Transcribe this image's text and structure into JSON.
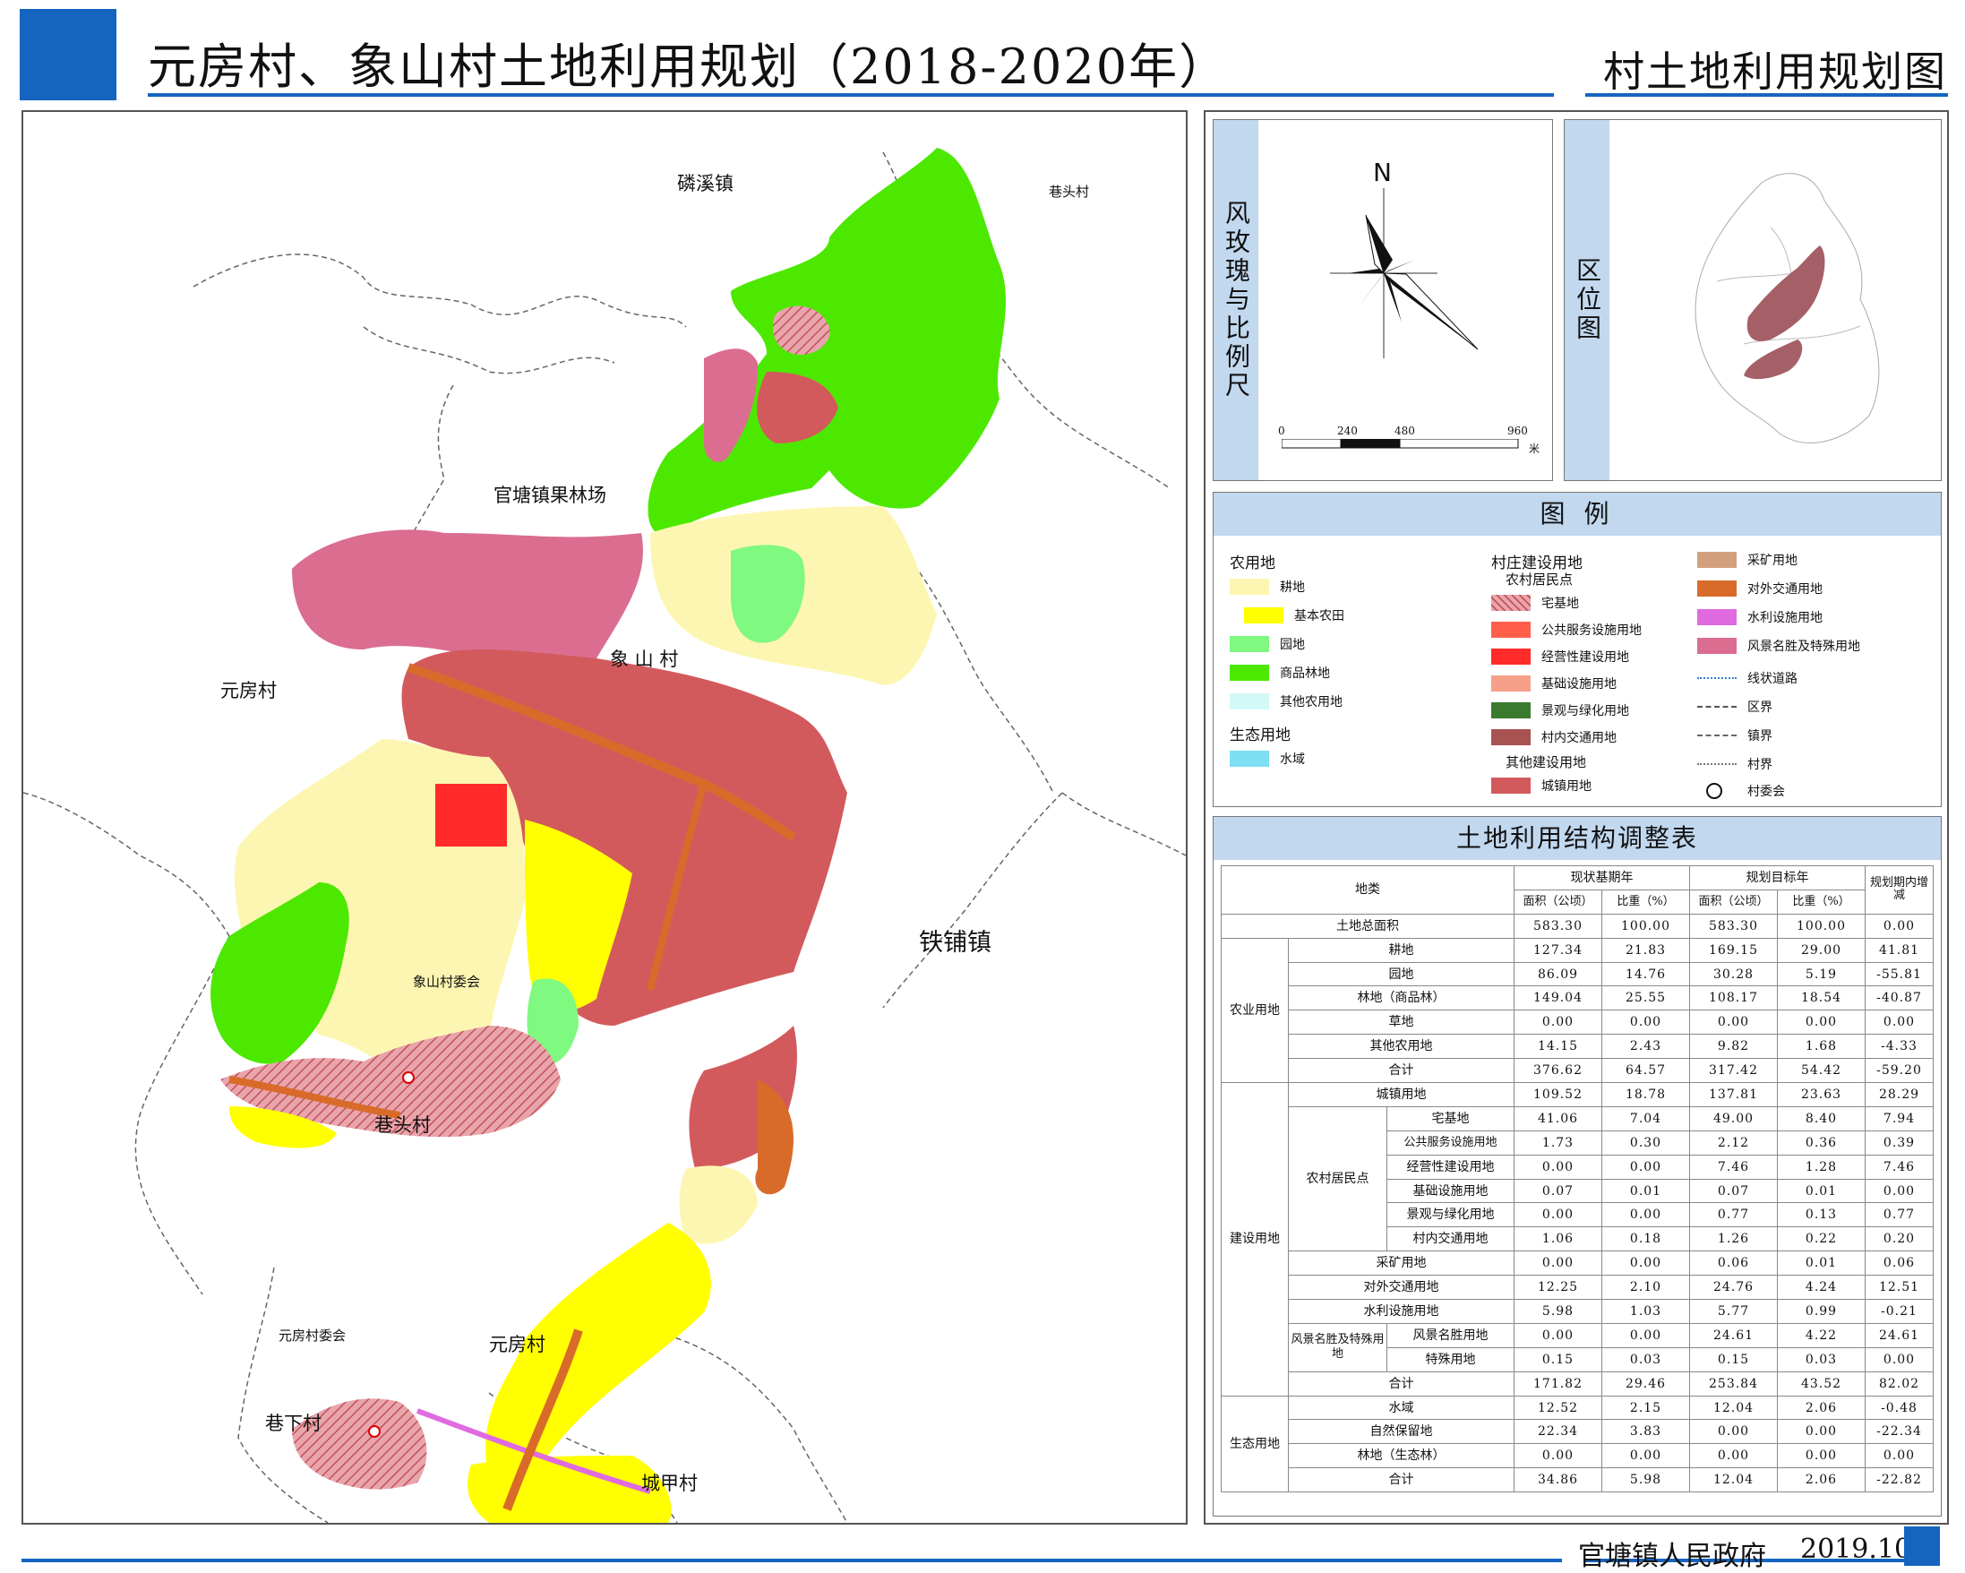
{
  "header": {
    "title": "元房村、象山村土地利用规划（2018-2020年）",
    "map_kind": "村土地利用规划图"
  },
  "footer": {
    "government": "官塘镇人民政府",
    "date": "2019.10"
  },
  "map": {
    "labels": {
      "linxi": "磷溪镇",
      "xiangtou_top": "巷头村",
      "guantang_orchard": "官塘镇果林场",
      "yuanfang_west": "元房村",
      "xiangshan": "象  山  村",
      "tiepu": "铁铺镇",
      "xiangtou_mid": "巷头村",
      "yuanfang_village": "元房村",
      "xiaxia": "巷下村",
      "chengjia": "城甲村",
      "xiangshan_committee": "象山村委会",
      "yuanfang_committee": "元房村委会"
    },
    "colors": {
      "cultivated": "#fdf6b2",
      "basic_farmland": "#ffff00",
      "garden": "#7ff97f",
      "commercial_forest": "#4de800",
      "other_agri": "#d2f8f8",
      "water": "#7fdff5",
      "homestead": "#d9858d",
      "town_land": "#d35a5c",
      "business": "#ff2a2a",
      "transport": "#d96b2a",
      "scenic": "#db6d90",
      "irrigation": "#e06be0"
    }
  },
  "compass": {
    "title": "风玫瑰与比例尺",
    "north": "N",
    "scale_ticks": [
      "0",
      "240",
      "480",
      "960"
    ],
    "scale_unit": "米"
  },
  "locator": {
    "title": "区位图"
  },
  "legend": {
    "title": "图   例",
    "col1": {
      "head_agri": "农用地",
      "items": [
        {
          "label": "耕地",
          "color": "#fdf6b2"
        },
        {
          "label": "基本农田",
          "color": "#ffff00"
        },
        {
          "label": "园地",
          "color": "#7ff97f"
        },
        {
          "label": "商品林地",
          "color": "#4de800"
        },
        {
          "label": "其他农用地",
          "color": "#d2f8f8"
        }
      ],
      "head_eco": "生态用地",
      "eco_items": [
        {
          "label": "水域",
          "color": "#7fdff5"
        }
      ]
    },
    "col2": {
      "head": "村庄建设用地",
      "sub_head": "农村居民点",
      "items": [
        {
          "label": "宅基地",
          "color": "#d9858d"
        },
        {
          "label": "公共服务设施用地",
          "color": "#ff5f4a"
        },
        {
          "label": "经营性建设用地",
          "color": "#ff2a2a"
        },
        {
          "label": "基础设施用地",
          "color": "#f6a08a"
        },
        {
          "label": "景观与绿化用地",
          "color": "#3a7a2e"
        },
        {
          "label": "村内交通用地",
          "color": "#a85252"
        }
      ],
      "sub_head2": "其他建设用地",
      "items2": [
        {
          "label": "城镇用地",
          "color": "#d35a5c"
        }
      ]
    },
    "col3": {
      "items": [
        {
          "label": "采矿用地",
          "color": "#d3a07e"
        },
        {
          "label": "对外交通用地",
          "color": "#d96b2a"
        },
        {
          "label": "水利设施用地",
          "color": "#e06be0"
        },
        {
          "label": "风景名胜及特殊用地",
          "color": "#db6d90"
        }
      ],
      "lines": [
        {
          "label": "线状道路"
        },
        {
          "label": "区界"
        },
        {
          "label": "镇界"
        },
        {
          "label": "村界"
        }
      ],
      "committee": "村委会"
    }
  },
  "table": {
    "title": "土地利用结构调整表",
    "header": {
      "category": "地类",
      "base_year": "现状基期年",
      "target_year": "规划目标年",
      "change": "规划期内增减",
      "area": "面积（公顷）",
      "ratio": "比重（%）"
    },
    "total": {
      "label": "土地总面积",
      "values": [
        "583.30",
        "100.00",
        "583.30",
        "100.00",
        "0.00"
      ]
    },
    "agri": {
      "group": "农业用地",
      "rows": [
        {
          "label": "耕地",
          "values": [
            "127.34",
            "21.83",
            "169.15",
            "29.00",
            "41.81"
          ]
        },
        {
          "label": "园地",
          "values": [
            "86.09",
            "14.76",
            "30.28",
            "5.19",
            "-55.81"
          ]
        },
        {
          "label": "林地（商品林）",
          "values": [
            "149.04",
            "25.55",
            "108.17",
            "18.54",
            "-40.87"
          ]
        },
        {
          "label": "草地",
          "values": [
            "0.00",
            "0.00",
            "0.00",
            "0.00",
            "0.00"
          ]
        },
        {
          "label": "其他农用地",
          "values": [
            "14.15",
            "2.43",
            "9.82",
            "1.68",
            "-4.33"
          ]
        },
        {
          "label": "合计",
          "values": [
            "376.62",
            "64.57",
            "317.42",
            "54.42",
            "-59.20"
          ]
        }
      ]
    },
    "build": {
      "group": "建设用地",
      "town": {
        "label": "城镇用地",
        "values": [
          "109.52",
          "18.78",
          "137.81",
          "23.63",
          "28.29"
        ]
      },
      "rural_group": "农村居民点",
      "rural_rows": [
        {
          "label": "宅基地",
          "values": [
            "41.06",
            "7.04",
            "49.00",
            "8.40",
            "7.94"
          ]
        },
        {
          "label": "公共服务设施用地",
          "values": [
            "1.73",
            "0.30",
            "2.12",
            "0.36",
            "0.39"
          ]
        },
        {
          "label": "经营性建设用地",
          "values": [
            "0.00",
            "0.00",
            "7.46",
            "1.28",
            "7.46"
          ]
        },
        {
          "label": "基础设施用地",
          "values": [
            "0.07",
            "0.01",
            "0.07",
            "0.01",
            "0.00"
          ]
        },
        {
          "label": "景观与绿化用地",
          "values": [
            "0.00",
            "0.00",
            "0.77",
            "0.13",
            "0.77"
          ]
        },
        {
          "label": "村内交通用地",
          "values": [
            "1.06",
            "0.18",
            "1.26",
            "0.22",
            "0.20"
          ]
        }
      ],
      "mining": {
        "label": "采矿用地",
        "values": [
          "0.00",
          "0.00",
          "0.06",
          "0.01",
          "0.06"
        ]
      },
      "transport": {
        "label": "对外交通用地",
        "values": [
          "12.25",
          "2.10",
          "24.76",
          "4.24",
          "12.51"
        ]
      },
      "irrigation": {
        "label": "水利设施用地",
        "values": [
          "5.98",
          "1.03",
          "5.77",
          "0.99",
          "-0.21"
        ]
      },
      "scenic_group": "风景名胜及特殊用地",
      "scenic_rows": [
        {
          "label": "风景名胜用地",
          "values": [
            "0.00",
            "0.00",
            "24.61",
            "4.22",
            "24.61"
          ]
        },
        {
          "label": "特殊用地",
          "values": [
            "0.15",
            "0.03",
            "0.15",
            "0.03",
            "0.00"
          ]
        }
      ],
      "sum": {
        "label": "合计",
        "values": [
          "171.82",
          "29.46",
          "253.84",
          "43.52",
          "82.02"
        ]
      }
    },
    "eco": {
      "group": "生态用地",
      "rows": [
        {
          "label": "水域",
          "values": [
            "12.52",
            "2.15",
            "12.04",
            "2.06",
            "-0.48"
          ]
        },
        {
          "label": "自然保留地",
          "values": [
            "22.34",
            "3.83",
            "0.00",
            "0.00",
            "-22.34"
          ]
        },
        {
          "label": "林地（生态林）",
          "values": [
            "0.00",
            "0.00",
            "0.00",
            "0.00",
            "0.00"
          ]
        },
        {
          "label": "合计",
          "values": [
            "34.86",
            "5.98",
            "12.04",
            "2.06",
            "-22.82"
          ]
        }
      ]
    }
  }
}
